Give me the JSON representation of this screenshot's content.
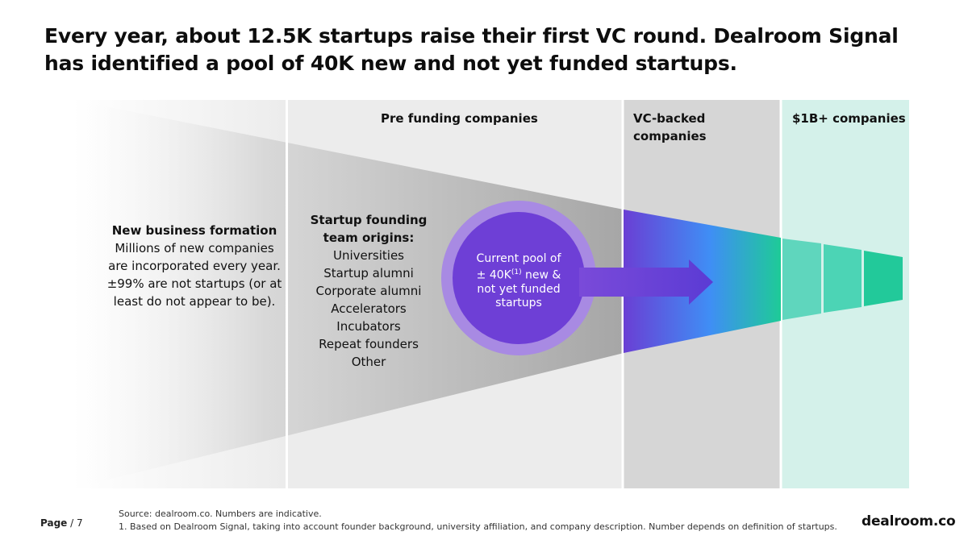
{
  "headline": "Every year, about 12.5K startups raise their first VC round. Dealroom Signal has identified a pool of 40K new and not yet funded startups.",
  "stages": [
    {
      "label": "Pre funding companies"
    },
    {
      "label_line1": "VC-backed",
      "label_line2": "companies"
    },
    {
      "label": "$1B+ companies"
    }
  ],
  "new_business": {
    "title": "New business formation",
    "lines": [
      "Millions of new companies",
      "are incorporated every year.",
      "±99% are not startups (or at",
      "least do not appear to be)."
    ]
  },
  "origins": {
    "title_line1": "Startup founding",
    "title_line2": "team origins:",
    "items": [
      "Universities",
      "Startup alumni",
      "Corporate alumni",
      "Accelerators",
      "Incubators",
      "Repeat founders",
      "Other"
    ]
  },
  "pool": {
    "line1": "Current pool of",
    "line2_prefix": "± 40K",
    "line2_sup": "(1)",
    "line2_suffix": " new &",
    "line3": "not yet funded",
    "line4": "startups"
  },
  "footer": {
    "page_label": "Page",
    "page_sep": " / ",
    "page_number": "7",
    "source": "Source: dealroom.co. Numbers are indicative.",
    "note": "1. Based on Dealroom Signal, taking into account founder background, university affiliation, and company description. Number depends on definition of startups.",
    "brand": "dealroom.co"
  },
  "colors": {
    "panel_gray": "#ececec",
    "vc_gray": "#d6d6d6",
    "unicorn_mint": "#d4f1ea",
    "purple": "#6e3fd6",
    "blue": "#3d8cf5",
    "teal": "#1fc79a",
    "circle_ring": "#a88ae3"
  }
}
